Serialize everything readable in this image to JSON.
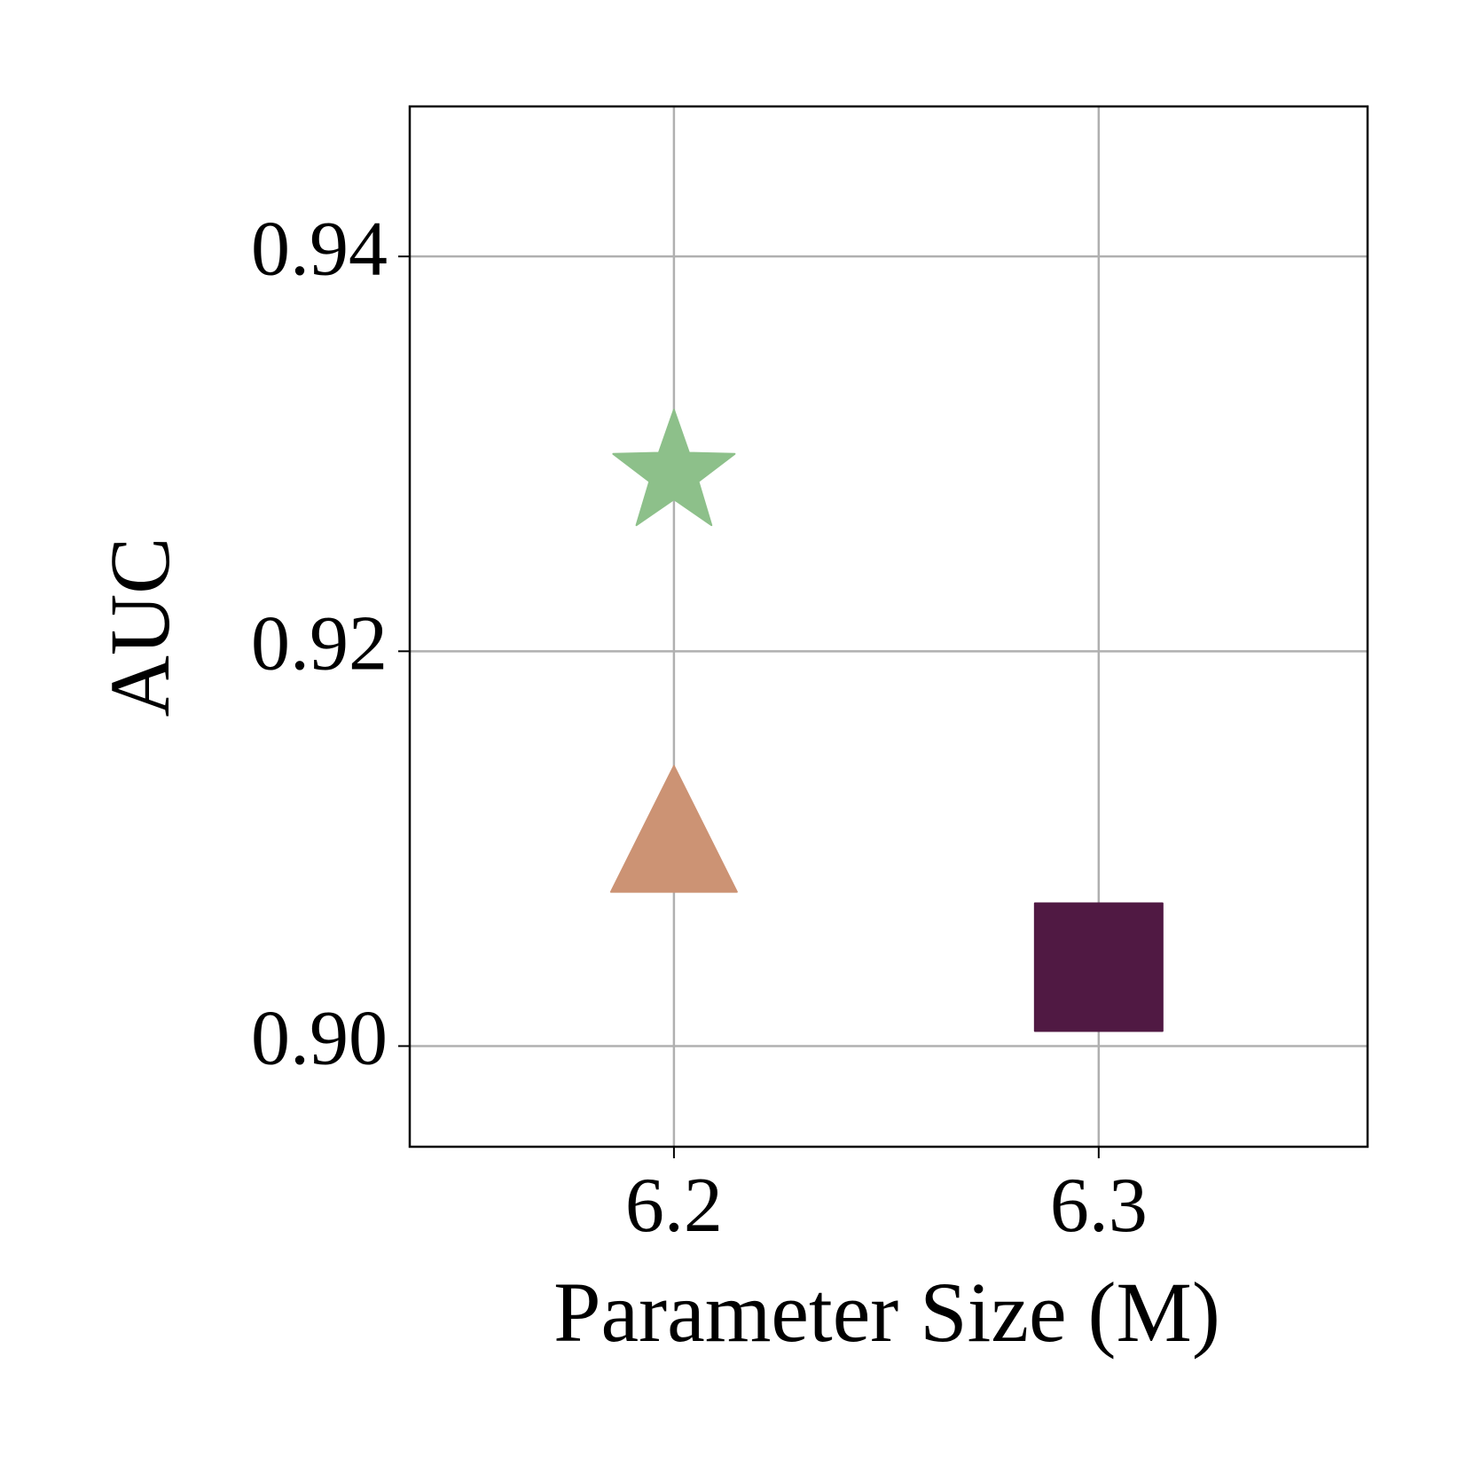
{
  "chart_data": {
    "type": "scatter",
    "xlabel": "Parameter Size (M)",
    "ylabel": "AUC",
    "xlim": [
      6.1378,
      6.3633
    ],
    "ylim": [
      0.8949,
      0.9476
    ],
    "xticks": [
      6.2,
      6.3
    ],
    "yticks": [
      {
        "value": 0.9,
        "label": "0.90"
      },
      {
        "value": 0.92,
        "label": "0.92"
      },
      {
        "value": 0.94,
        "label": "0.94"
      }
    ],
    "grid": true,
    "series": [
      {
        "color": "#8dc08a",
        "marker": "star",
        "x": [
          6.2
        ],
        "values": [
          0.929
        ]
      },
      {
        "color": "#cc9374",
        "marker": "triangle",
        "x": [
          6.2
        ],
        "values": [
          0.911
        ]
      },
      {
        "color": "#501943",
        "marker": "square",
        "x": [
          6.3
        ],
        "values": [
          0.904
        ]
      }
    ]
  }
}
